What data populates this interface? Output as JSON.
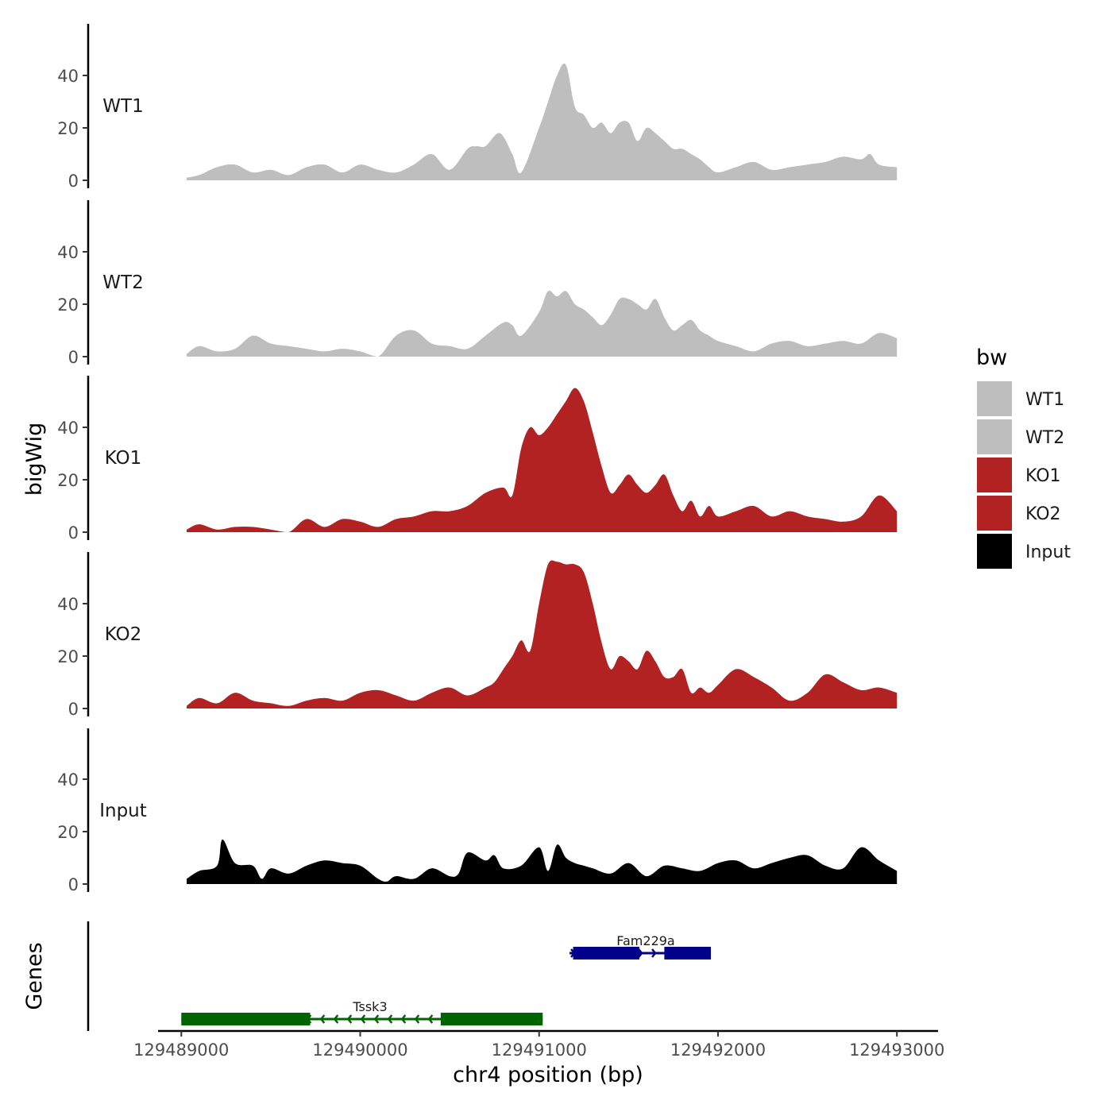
{
  "chart_data": {
    "type": "area",
    "ylabel": "bigWig",
    "xlabel": "chr4 position (bp)",
    "ylim": [
      0,
      60
    ],
    "yticks": [
      0,
      20,
      40
    ],
    "xlim": [
      129488870,
      129493230
    ],
    "xticks": [
      129489000,
      129490000,
      129491000,
      129492000,
      129493000
    ],
    "xtick_labels": [
      "129489000",
      "129490000",
      "129491000",
      "129492000",
      "129493000"
    ],
    "legend": {
      "title": "bw",
      "position": "right",
      "entries": [
        {
          "label": "WT1",
          "color": "#bebebe"
        },
        {
          "label": "WT2",
          "color": "#bebebe"
        },
        {
          "label": "KO1",
          "color": "#b22222"
        },
        {
          "label": "KO2",
          "color": "#b22222"
        },
        {
          "label": "Input",
          "color": "#000000"
        }
      ]
    },
    "tracks": [
      {
        "name": "WT1",
        "color": "#bebebe",
        "x": [
          129489030,
          129489100,
          129489200,
          129489300,
          129489400,
          129489500,
          129489600,
          129489700,
          129489800,
          129489900,
          129490000,
          129490100,
          129490200,
          129490300,
          129490400,
          129490500,
          129490600,
          129490650,
          129490700,
          129490780,
          129490850,
          129490900,
          129491000,
          129491050,
          129491100,
          129491150,
          129491200,
          129491250,
          129491300,
          129491350,
          129491400,
          129491450,
          129491500,
          129491550,
          129491600,
          129491650,
          129491700,
          129491750,
          129491800,
          129491850,
          129491900,
          129491950,
          129492000,
          129492100,
          129492200,
          129492300,
          129492400,
          129492500,
          129492600,
          129492700,
          129492800,
          129492850,
          129492900,
          129493000
        ],
        "values": [
          1,
          2,
          5,
          6,
          3,
          4,
          2,
          5,
          6,
          3,
          6,
          4,
          3,
          6,
          10,
          4,
          12,
          13,
          13,
          18,
          10,
          3,
          20,
          30,
          40,
          44,
          28,
          25,
          20,
          22,
          18,
          22,
          22,
          15,
          20,
          18,
          15,
          12,
          12,
          10,
          8,
          5,
          3,
          5,
          7,
          4,
          5,
          6,
          7,
          9,
          8,
          10,
          6,
          5
        ]
      },
      {
        "name": "WT2",
        "color": "#bebebe",
        "x": [
          129489030,
          129489100,
          129489200,
          129489300,
          129489400,
          129489500,
          129489600,
          129489700,
          129489800,
          129489900,
          129490000,
          129490100,
          129490200,
          129490300,
          129490400,
          129490500,
          129490600,
          129490700,
          129490800,
          129490850,
          129490900,
          129491000,
          129491050,
          129491100,
          129491150,
          129491200,
          129491250,
          129491300,
          129491350,
          129491400,
          129491450,
          129491500,
          129491550,
          129491600,
          129491650,
          129491700,
          129491750,
          129491800,
          129491850,
          129491900,
          129491950,
          129492000,
          129492100,
          129492200,
          129492300,
          129492400,
          129492500,
          129492600,
          129492700,
          129492800,
          129492900,
          129493000
        ],
        "values": [
          1,
          4,
          2,
          3,
          8,
          5,
          4,
          3,
          2,
          3,
          2,
          0,
          8,
          10,
          5,
          4,
          3,
          8,
          13,
          12,
          8,
          17,
          25,
          23,
          25,
          20,
          18,
          15,
          12,
          16,
          22,
          22,
          20,
          18,
          22,
          15,
          10,
          12,
          14,
          10,
          8,
          6,
          4,
          2,
          5,
          6,
          4,
          5,
          6,
          5,
          9,
          7
        ]
      },
      {
        "name": "KO1",
        "color": "#b22222",
        "x": [
          129489030,
          129489100,
          129489200,
          129489300,
          129489400,
          129489500,
          129489600,
          129489700,
          129489800,
          129489900,
          129490000,
          129490100,
          129490200,
          129490300,
          129490400,
          129490500,
          129490600,
          129490700,
          129490800,
          129490850,
          129490900,
          129490950,
          129491000,
          129491050,
          129491100,
          129491150,
          129491200,
          129491250,
          129491300,
          129491350,
          129491400,
          129491450,
          129491500,
          129491550,
          129491600,
          129491650,
          129491700,
          129491750,
          129491800,
          129491850,
          129491900,
          129491950,
          129492000,
          129492100,
          129492200,
          129492300,
          129492400,
          129492500,
          129492600,
          129492700,
          129492800,
          129492900,
          129493000
        ],
        "values": [
          1,
          3,
          1,
          2,
          2,
          1,
          0,
          5,
          2,
          5,
          4,
          2,
          5,
          6,
          8,
          8,
          10,
          15,
          17,
          14,
          32,
          40,
          37,
          40,
          45,
          50,
          55,
          50,
          38,
          25,
          15,
          18,
          22,
          18,
          15,
          18,
          22,
          14,
          8,
          12,
          6,
          10,
          6,
          8,
          10,
          6,
          8,
          6,
          5,
          4,
          6,
          14,
          8
        ]
      },
      {
        "name": "KO2",
        "color": "#b22222",
        "x": [
          129489030,
          129489100,
          129489200,
          129489300,
          129489400,
          129489500,
          129489600,
          129489700,
          129489800,
          129489900,
          129490000,
          129490100,
          129490200,
          129490300,
          129490400,
          129490500,
          129490600,
          129490700,
          129490750,
          129490800,
          129490850,
          129490900,
          129490950,
          129491000,
          129491050,
          129491100,
          129491150,
          129491200,
          129491250,
          129491300,
          129491350,
          129491400,
          129491450,
          129491500,
          129491550,
          129491600,
          129491650,
          129491700,
          129491750,
          129491800,
          129491850,
          129491900,
          129491950,
          129492000,
          129492100,
          129492200,
          129492300,
          129492400,
          129492500,
          129492600,
          129492700,
          129492800,
          129492900,
          129493000
        ],
        "values": [
          1,
          4,
          2,
          6,
          3,
          2,
          1,
          3,
          4,
          3,
          6,
          7,
          5,
          3,
          6,
          8,
          5,
          8,
          10,
          15,
          20,
          26,
          22,
          40,
          55,
          56,
          55,
          55,
          52,
          40,
          25,
          15,
          20,
          18,
          15,
          22,
          18,
          12,
          12,
          15,
          6,
          8,
          6,
          9,
          15,
          12,
          8,
          3,
          6,
          13,
          10,
          7,
          8,
          6
        ]
      },
      {
        "name": "Input",
        "color": "#000000",
        "x": [
          129489030,
          129489100,
          129489200,
          129489230,
          129489300,
          129489400,
          129489450,
          129489500,
          129489600,
          129489700,
          129489800,
          129489900,
          129490000,
          129490100,
          129490150,
          129490200,
          129490300,
          129490400,
          129490500,
          129490550,
          129490600,
          129490700,
          129490750,
          129490800,
          129490900,
          129491000,
          129491050,
          129491100,
          129491150,
          129491200,
          129491250,
          129491300,
          129491400,
          129491500,
          129491600,
          129491700,
          129491800,
          129491900,
          129492000,
          129492100,
          129492200,
          129492300,
          129492400,
          129492500,
          129492600,
          129492700,
          129492800,
          129492900,
          129493000
        ],
        "values": [
          2,
          5,
          7,
          17,
          8,
          7,
          2,
          6,
          4,
          7,
          9,
          8,
          7,
          2,
          1,
          3,
          2,
          6,
          3,
          4,
          12,
          9,
          11,
          6,
          7,
          14,
          5,
          15,
          10,
          8,
          7,
          6,
          4,
          8,
          3,
          7,
          6,
          5,
          8,
          9,
          6,
          8,
          10,
          11,
          7,
          6,
          14,
          9,
          5
        ]
      }
    ],
    "genes": [
      {
        "name": "Tssk3",
        "strand": "-",
        "color": "#006400",
        "start": 129489000,
        "end": 129491020,
        "exons": [
          [
            129489000,
            129489720
          ],
          [
            129490450,
            129491020
          ]
        ]
      },
      {
        "name": "Fam229a",
        "strand": "+",
        "color": "#00008b",
        "start": 129491170,
        "end": 129491960,
        "exons": [
          [
            129491190,
            129491560
          ],
          [
            129491700,
            129491960
          ]
        ]
      }
    ],
    "genes_label": "Genes"
  }
}
